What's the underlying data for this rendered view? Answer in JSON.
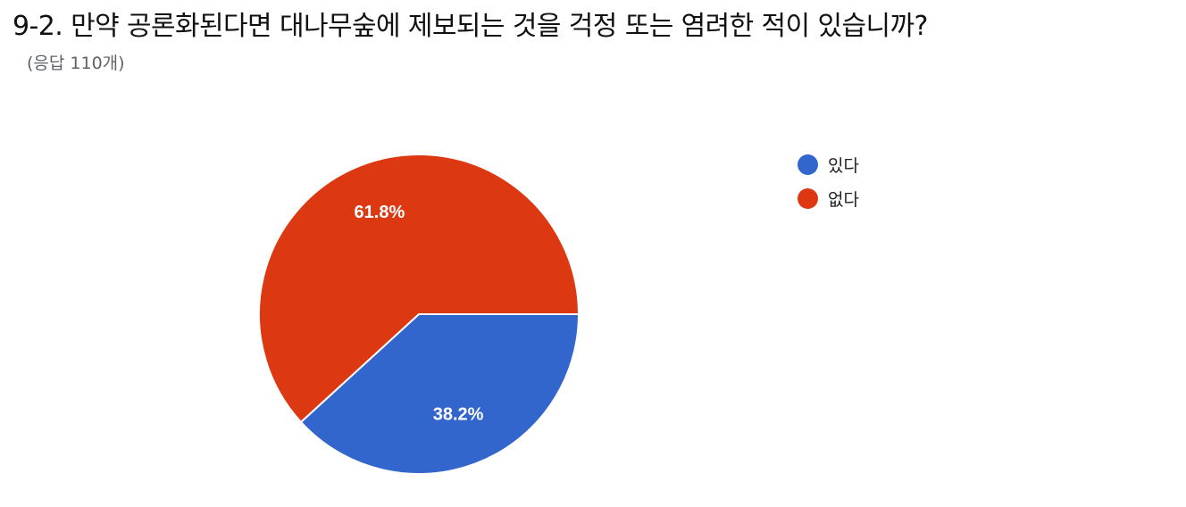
{
  "chart_data": {
    "type": "pie",
    "title": "9-2. 만약 공론화된다면 대나무숲에 제보되는 것을 걱정 또는 염려한 적이 있습니까?",
    "subtitle": "(응답 110개)",
    "categories": [
      "있다",
      "없다"
    ],
    "values": [
      38.2,
      61.8
    ],
    "labels": [
      "38.2%",
      "61.8%"
    ],
    "colors": [
      "#3366cc",
      "#dc3912"
    ],
    "legend_position": "right"
  }
}
